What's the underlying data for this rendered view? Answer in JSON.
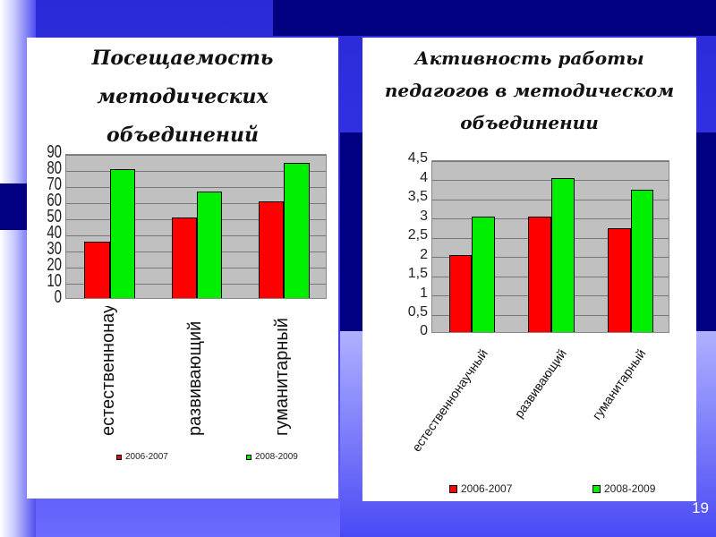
{
  "slide_number": "19",
  "colors": {
    "series1": "#ff0000",
    "series2": "#00ee00"
  },
  "chart_data": [
    {
      "type": "bar",
      "title": "Посещаемость методических объединений",
      "title_lines": [
        "Посещаемость",
        "методических",
        "объединений"
      ],
      "categories": [
        "естественнонаучный",
        "развивающий",
        "гуманитарный"
      ],
      "series": [
        {
          "name": "2006-2007",
          "values": [
            35,
            50,
            60
          ]
        },
        {
          "name": "2008-2009",
          "values": [
            80,
            66,
            84
          ]
        }
      ],
      "ylim": [
        0,
        90
      ],
      "yticks": [
        "0",
        "10",
        "20",
        "30",
        "40",
        "50",
        "60",
        "70",
        "80",
        "90"
      ],
      "grid": true,
      "legend": "bottom"
    },
    {
      "type": "bar",
      "title": "Активность работы педагогов в методическом объединении",
      "title_lines": [
        "Активность работы",
        "педагогов в методическом",
        "объединении"
      ],
      "categories": [
        "естественнонаучный",
        "развивающий",
        "гуманитарный"
      ],
      "series": [
        {
          "name": "2006-2007",
          "values": [
            2,
            3,
            2.7
          ]
        },
        {
          "name": "2008-2009",
          "values": [
            3,
            4,
            3.7
          ]
        }
      ],
      "ylim": [
        0,
        4.5
      ],
      "yticks": [
        "0",
        "0,5",
        "1",
        "1,5",
        "2",
        "2,5",
        "3",
        "3,5",
        "4",
        "4,5"
      ],
      "grid": true,
      "legend": "bottom"
    }
  ]
}
